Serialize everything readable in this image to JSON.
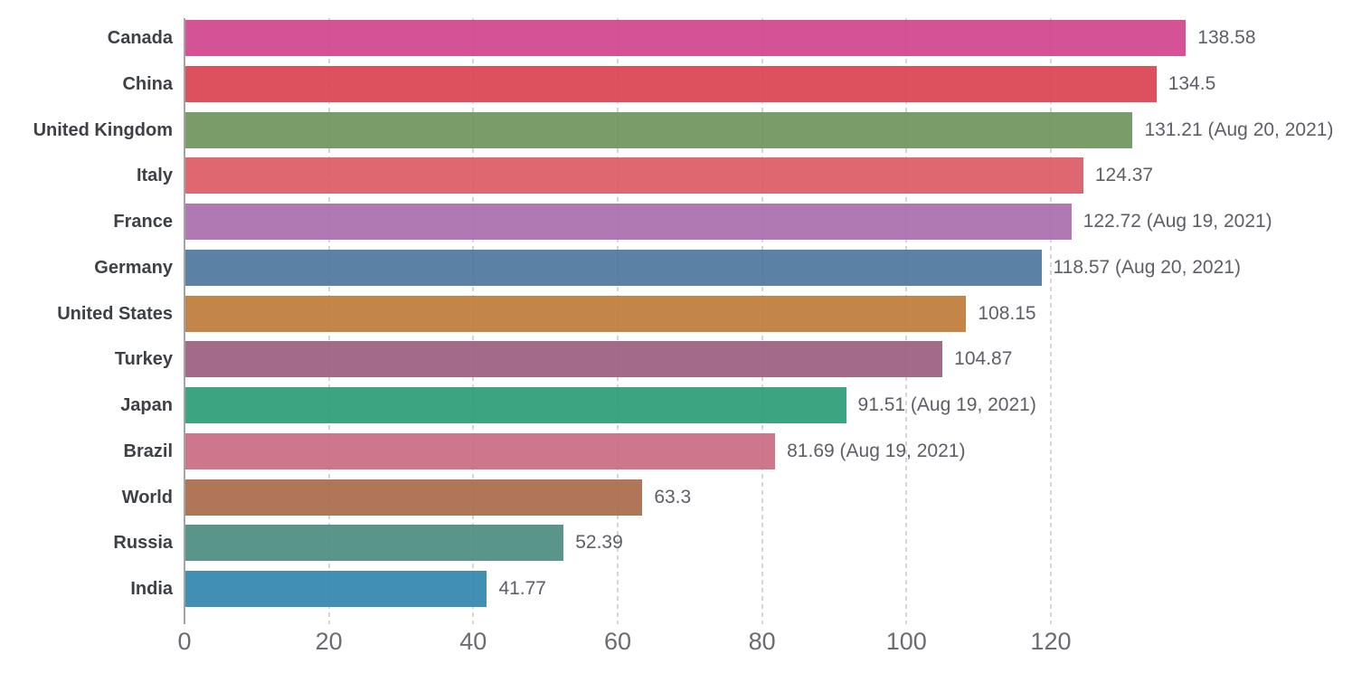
{
  "chart_data": {
    "type": "bar",
    "orientation": "horizontal",
    "title": "",
    "xlabel": "",
    "ylabel": "",
    "xlim": [
      0,
      141
    ],
    "x_ticks": [
      0,
      20,
      40,
      60,
      80,
      100,
      120
    ],
    "grid": "vertical-dashed",
    "legend": "none",
    "categories": [
      "Canada",
      "China",
      "United Kingdom",
      "Italy",
      "France",
      "Germany",
      "United States",
      "Turkey",
      "Japan",
      "Brazil",
      "World",
      "Russia",
      "India"
    ],
    "values": [
      138.58,
      134.5,
      131.21,
      124.37,
      122.72,
      118.57,
      108.15,
      104.87,
      91.51,
      81.69,
      63.3,
      52.39,
      41.77
    ],
    "bar_labels": [
      "138.58",
      "134.5",
      "131.21 (Aug 20, 2021)",
      "124.37",
      "122.72 (Aug 19, 2021)",
      "118.57 (Aug 20, 2021)",
      "108.15",
      "104.87",
      "91.51 (Aug 19, 2021)",
      "81.69 (Aug 19, 2021)",
      "63.3",
      "52.39",
      "41.77"
    ],
    "bar_colors": [
      "#d3458f",
      "#da4453",
      "#6f945e",
      "#da5c64",
      "#aa6fae",
      "#4f789e",
      "#c07c3b",
      "#9c6080",
      "#2b9e76",
      "#ca6c81",
      "#a96d4a",
      "#4d8d82",
      "#3386ad"
    ]
  },
  "colors": {
    "background": "#ffffff",
    "axis_line": "#a4a4a4",
    "gridline": "#d6d6d6",
    "country_label": "#3d4045",
    "value_label": "#5c5f66",
    "tick_label": "#6a6c72"
  }
}
